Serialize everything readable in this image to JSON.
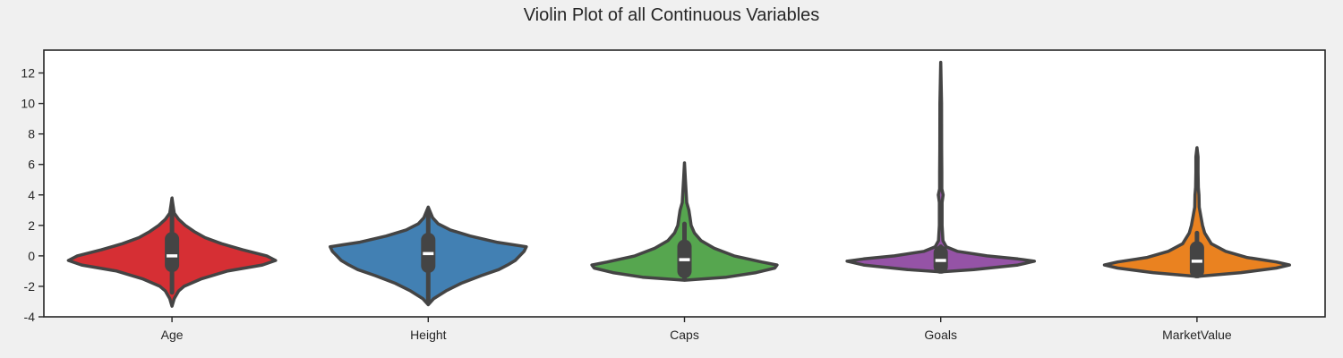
{
  "chart_data": {
    "type": "violin",
    "title": "Violin Plot of all Continuous Variables",
    "xlabel": "",
    "ylabel": "",
    "ylim": [
      -4,
      13.5
    ],
    "yticks": [
      -4,
      -2,
      0,
      2,
      4,
      6,
      8,
      10,
      12
    ],
    "grid": false,
    "categories": [
      "Age",
      "Height",
      "Caps",
      "Goals",
      "MarketValue"
    ],
    "colors": [
      "#d62f34",
      "#4280b3",
      "#56a64f",
      "#9553a6",
      "#ea8220"
    ],
    "violins": [
      {
        "category": "Age",
        "median": 0.0,
        "q1": -0.6,
        "q3": 1.1,
        "whisker_low": -2.4,
        "whisker_high": 2.9,
        "profile": [
          [
            -3.3,
            0.0
          ],
          [
            -2.8,
            0.02
          ],
          [
            -2.3,
            0.06
          ],
          [
            -2.0,
            0.11
          ],
          [
            -1.5,
            0.27
          ],
          [
            -1.0,
            0.5
          ],
          [
            -0.6,
            0.82
          ],
          [
            -0.3,
            0.94
          ],
          [
            0.0,
            0.86
          ],
          [
            0.4,
            0.64
          ],
          [
            0.8,
            0.45
          ],
          [
            1.2,
            0.3
          ],
          [
            1.6,
            0.2
          ],
          [
            2.0,
            0.12
          ],
          [
            2.4,
            0.06
          ],
          [
            2.8,
            0.02
          ],
          [
            3.3,
            0.01
          ],
          [
            3.8,
            0.0
          ]
        ]
      },
      {
        "category": "Height",
        "median": 0.15,
        "q1": -0.65,
        "q3": 1.05,
        "whisker_low": -2.95,
        "whisker_high": 2.85,
        "profile": [
          [
            -3.2,
            0.0
          ],
          [
            -2.8,
            0.05
          ],
          [
            -2.3,
            0.16
          ],
          [
            -1.8,
            0.3
          ],
          [
            -1.3,
            0.48
          ],
          [
            -0.9,
            0.64
          ],
          [
            -0.6,
            0.72
          ],
          [
            -0.3,
            0.79
          ],
          [
            0.0,
            0.83
          ],
          [
            0.3,
            0.87
          ],
          [
            0.6,
            0.89
          ],
          [
            0.9,
            0.62
          ],
          [
            1.3,
            0.38
          ],
          [
            1.7,
            0.2
          ],
          [
            2.1,
            0.09
          ],
          [
            2.5,
            0.04
          ],
          [
            3.2,
            0.0
          ]
        ]
      },
      {
        "category": "Caps",
        "median": -0.25,
        "q1": -1.0,
        "q3": 0.6,
        "whisker_low": -1.5,
        "whisker_high": 2.1,
        "profile": [
          [
            -1.6,
            0.0
          ],
          [
            -1.4,
            0.38
          ],
          [
            -1.1,
            0.65
          ],
          [
            -0.8,
            0.82
          ],
          [
            -0.6,
            0.84
          ],
          [
            -0.4,
            0.7
          ],
          [
            0.0,
            0.45
          ],
          [
            0.5,
            0.27
          ],
          [
            1.0,
            0.15
          ],
          [
            1.5,
            0.09
          ],
          [
            2.0,
            0.06
          ],
          [
            2.5,
            0.05
          ],
          [
            3.0,
            0.04
          ],
          [
            3.5,
            0.02
          ],
          [
            4.2,
            0.015
          ],
          [
            5.0,
            0.008
          ],
          [
            6.1,
            0.0
          ]
        ]
      },
      {
        "category": "Goals",
        "median": -0.3,
        "q1": -0.7,
        "q3": 0.2,
        "whisker_low": -1.0,
        "whisker_high": 0.6,
        "profile": [
          [
            -1.05,
            0.0
          ],
          [
            -0.9,
            0.3
          ],
          [
            -0.6,
            0.7
          ],
          [
            -0.35,
            0.85
          ],
          [
            -0.2,
            0.7
          ],
          [
            0.0,
            0.42
          ],
          [
            0.3,
            0.15
          ],
          [
            0.6,
            0.05
          ],
          [
            1.0,
            0.02
          ],
          [
            2.0,
            0.012
          ],
          [
            3.5,
            0.012
          ],
          [
            4.0,
            0.022
          ],
          [
            4.4,
            0.01
          ],
          [
            5.5,
            0.01
          ],
          [
            7.0,
            0.008
          ],
          [
            10.0,
            0.007
          ],
          [
            12.7,
            0.0
          ]
        ]
      },
      {
        "category": "MarketValue",
        "median": -0.35,
        "q1": -1.0,
        "q3": 0.5,
        "whisker_low": -1.3,
        "whisker_high": 1.5,
        "profile": [
          [
            -1.35,
            0.0
          ],
          [
            -1.1,
            0.4
          ],
          [
            -0.8,
            0.72
          ],
          [
            -0.6,
            0.84
          ],
          [
            -0.4,
            0.72
          ],
          [
            -0.1,
            0.45
          ],
          [
            0.3,
            0.26
          ],
          [
            0.8,
            0.13
          ],
          [
            1.5,
            0.07
          ],
          [
            2.0,
            0.05
          ],
          [
            2.6,
            0.035
          ],
          [
            3.2,
            0.02
          ],
          [
            4.0,
            0.018
          ],
          [
            4.5,
            0.012
          ],
          [
            5.5,
            0.01
          ],
          [
            6.5,
            0.01
          ],
          [
            7.1,
            0.0
          ]
        ]
      }
    ]
  }
}
